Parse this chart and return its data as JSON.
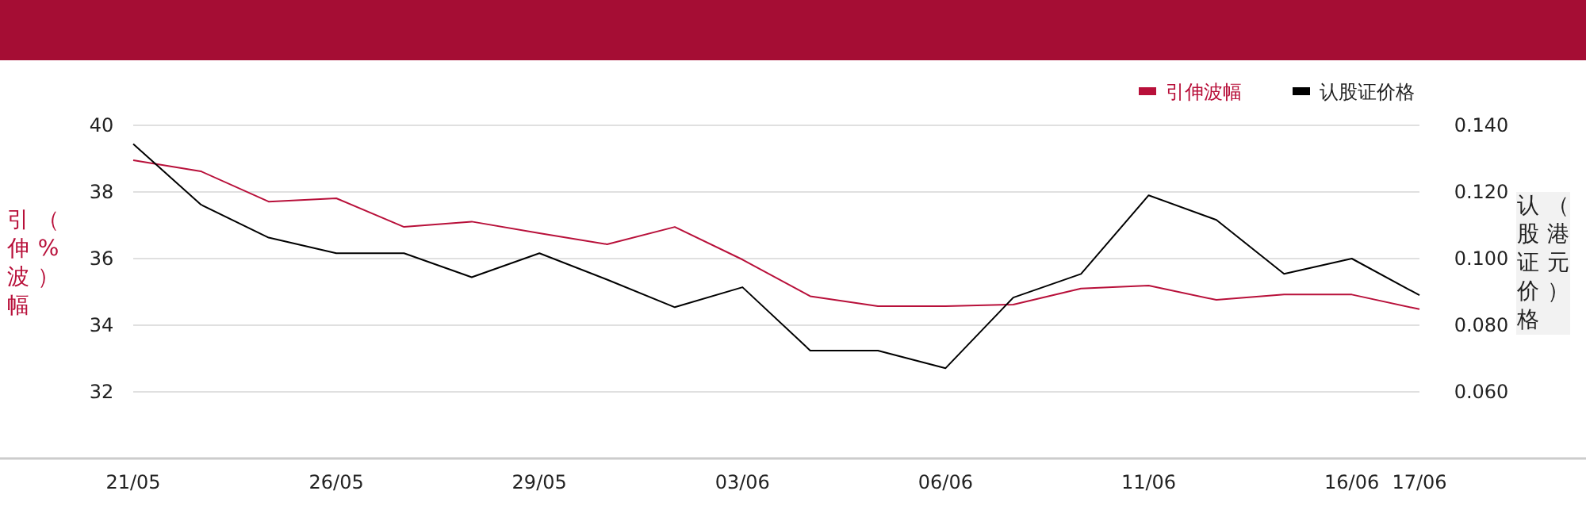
{
  "chart_data": {
    "type": "line",
    "categories": [
      "21/05",
      null,
      null,
      "26/05",
      null,
      null,
      "29/05",
      null,
      null,
      "03/06",
      null,
      null,
      "06/06",
      null,
      null,
      "11/06",
      null,
      null,
      "16/06",
      "17/06"
    ],
    "series": [
      {
        "name": "引伸波幅",
        "color": "#b8103a",
        "values": [
          38.95,
          38.62,
          37.71,
          37.81,
          36.95,
          37.11,
          36.76,
          36.43,
          36.95,
          35.97,
          34.87,
          34.57,
          34.57,
          34.62,
          35.1,
          35.19,
          34.76,
          34.92,
          34.92,
          34.48
        ]
      },
      {
        "name": "认股证价格",
        "color": "#000000",
        "axis": "y2",
        "values": [
          0.1344,
          0.1162,
          0.1063,
          0.1016,
          0.1016,
          0.0944,
          0.1016,
          0.0937,
          0.0854,
          0.0914,
          0.0724,
          0.0724,
          0.0671,
          0.0883,
          0.0954,
          0.119,
          0.1116,
          0.0954,
          0.1,
          0.089
        ]
      }
    ],
    "ylabel": "引伸波幅（%）",
    "y2label": "认股证价格（港元）",
    "ylim": [
      30,
      40
    ],
    "yticks": [
      32,
      34,
      36,
      38,
      40
    ],
    "y2lim": [
      0.04,
      0.14
    ],
    "y2ticks": [
      {
        "value": 0.06,
        "label": "0.060"
      },
      {
        "value": 0.08,
        "label": "0.080"
      },
      {
        "value": 0.1,
        "label": "0.100"
      },
      {
        "value": 0.12,
        "label": "0.120"
      },
      {
        "value": 0.14,
        "label": "0.140"
      }
    ],
    "grid": "y",
    "legend": "top right",
    "marker": "none",
    "line_style": "solid"
  }
}
